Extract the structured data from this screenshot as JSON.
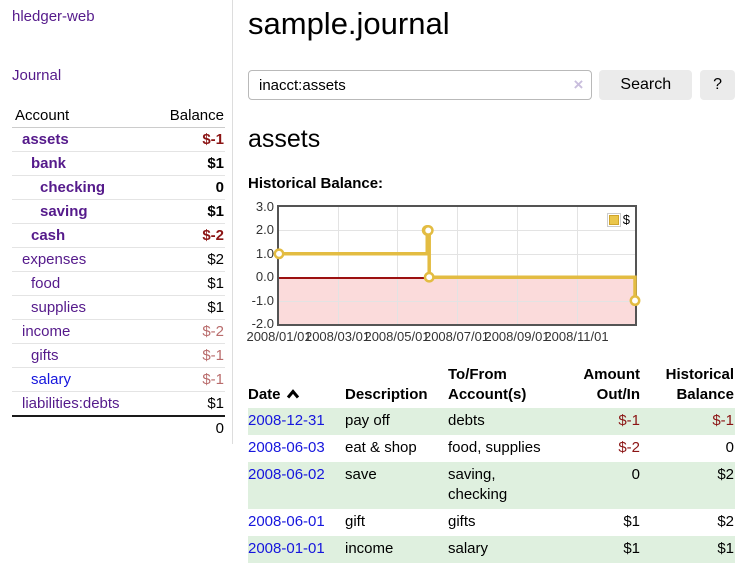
{
  "app": {
    "title": "hledger-web"
  },
  "sidebar": {
    "journal_label": "Journal",
    "accounts": {
      "header_account": "Account",
      "header_balance": "Balance",
      "rows": [
        {
          "name": "assets",
          "balance": "$-1"
        },
        {
          "name": "bank",
          "balance": "$1"
        },
        {
          "name": "checking",
          "balance": "0"
        },
        {
          "name": "saving",
          "balance": "$1"
        },
        {
          "name": "cash",
          "balance": "$-2"
        },
        {
          "name": "expenses",
          "balance": "$2"
        },
        {
          "name": "food",
          "balance": "$1"
        },
        {
          "name": "supplies",
          "balance": "$1"
        },
        {
          "name": "income",
          "balance": "$-2"
        },
        {
          "name": "gifts",
          "balance": "$-1"
        },
        {
          "name": "salary",
          "balance": "$-1"
        },
        {
          "name": "liabilities:debts",
          "balance": "$1"
        }
      ],
      "total": "0"
    }
  },
  "main": {
    "title": "sample.journal",
    "search": {
      "value": "inacct:assets",
      "clear_icon": "×",
      "search_button": "Search",
      "help_button": "?"
    },
    "account_title": "assets",
    "chart_heading": "Historical Balance:"
  },
  "chart_data": {
    "type": "line",
    "step": true,
    "title": "Historical Balance",
    "series": [
      {
        "name": "$",
        "color": "#e3bc42",
        "points": [
          [
            "2008-01-01",
            1
          ],
          [
            "2008-06-01",
            2
          ],
          [
            "2008-06-02",
            2
          ],
          [
            "2008-06-03",
            0
          ],
          [
            "2008-12-31",
            -1
          ]
        ]
      }
    ],
    "xlim": [
      "2008-01-01",
      "2008-12-31"
    ],
    "ylim": [
      -2,
      3
    ],
    "x_ticks": [
      "2008/01/01",
      "2008/03/01",
      "2008/05/01",
      "2008/07/01",
      "2008/09/01",
      "2008/11/01"
    ],
    "y_ticks": [
      "3.0",
      "2.0",
      "1.0",
      "0.0",
      "-1.0",
      "-2.0"
    ],
    "grid": true,
    "legend_position": "top-right",
    "negative_region_color": "#fbdbdb",
    "zero_line_color": "#9c1010"
  },
  "register": {
    "headers": {
      "date": "Date",
      "description": "Description",
      "account_l1": "To/From",
      "account_l2": "Account(s)",
      "amount_l1": "Amount",
      "amount_l2": "Out/In",
      "balance_l1": "Historical",
      "balance_l2": "Balance"
    },
    "rows": [
      {
        "date": "2008-12-31",
        "description": "pay off",
        "accounts": "debts",
        "amount": "$-1",
        "balance": "$-1"
      },
      {
        "date": "2008-06-03",
        "description": "eat & shop",
        "accounts": "food, supplies",
        "amount": "$-2",
        "balance": "0"
      },
      {
        "date": "2008-06-02",
        "description": "save",
        "accounts": "saving, checking",
        "amount": "0",
        "balance": "$2"
      },
      {
        "date": "2008-06-01",
        "description": "gift",
        "accounts": "gifts",
        "amount": "$1",
        "balance": "$2"
      },
      {
        "date": "2008-01-01",
        "description": "income",
        "accounts": "salary",
        "amount": "$1",
        "balance": "$1"
      }
    ]
  }
}
